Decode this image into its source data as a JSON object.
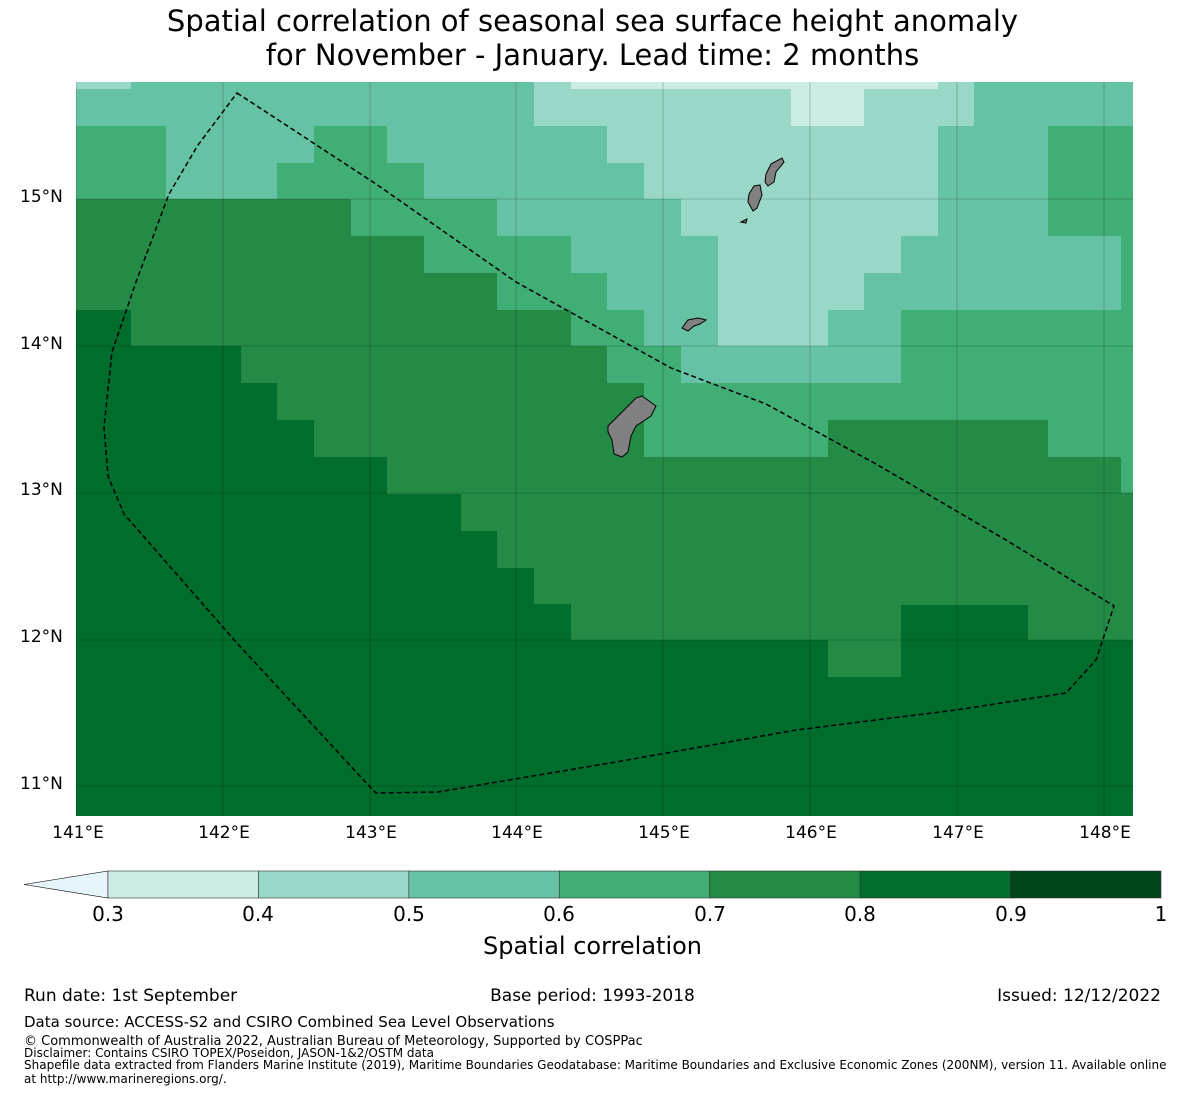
{
  "title": {
    "line1": "Spatial correlation of seasonal sea surface height anomaly",
    "line2": "for November - January. Lead time: 2 months"
  },
  "map": {
    "lon_range": [
      141.0,
      148.2
    ],
    "lat_range": [
      10.8,
      15.8
    ],
    "lat_ticks": [
      "15°N",
      "14°N",
      "13°N",
      "12°N",
      "11°N"
    ],
    "lon_ticks": [
      "141°E",
      "142°E",
      "143°E",
      "144°E",
      "145°E",
      "146°E",
      "147°E",
      "148°E"
    ],
    "islands": [
      "Guam",
      "Rota",
      "Tinian",
      "Saipan"
    ],
    "eez_boundary": "Guam / Northern Mariana Islands EEZ (dashed line)"
  },
  "colorbar": {
    "label": "Spatial correlation",
    "ticks": [
      "0.3",
      "0.4",
      "0.5",
      "0.6",
      "0.7",
      "0.8",
      "0.9",
      "1"
    ],
    "colors": [
      "#e5f5f9",
      "#ccece6",
      "#99d8c9",
      "#66c2a4",
      "#41ae76",
      "#238b45",
      "#006d2c",
      "#00441b"
    ],
    "extend": "min"
  },
  "meta": {
    "run_date": "Run date: 1st September",
    "base_period": "Base period: 1993-2018",
    "issued": "Issued: 12/12/2022"
  },
  "footer": {
    "data_source": "Data source: ACCESS-S2 and CSIRO Combined Sea Level Observations",
    "copyright": "© Commonwealth of Australia 2022, Australian Bureau of Meteorology, Supported by COSPPac",
    "disclaimer": "Disclaimer: Contains CSIRO TOPEX/Poseidon, JASON-1&2/OSTM data",
    "shapefile_1": "Shapefile data extracted from Flanders Marine Institute (2019), Maritime Boundaries Geodatabase: Maritime Boundaries and Exclusive Economic Zones (200NM), version 11. Available online",
    "shapefile_2": "at http://www.marineregions.org/."
  }
}
